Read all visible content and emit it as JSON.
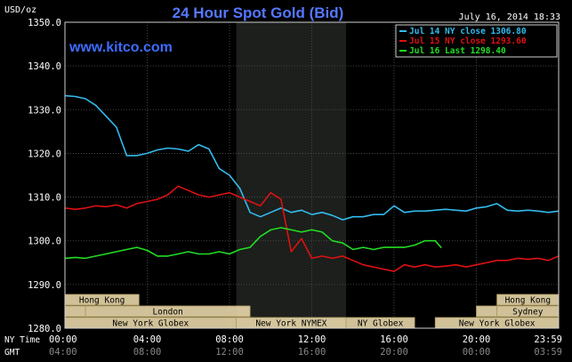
{
  "chart_data": {
    "type": "line",
    "title": "24 Hour Spot Gold (Bid)",
    "unit_label": "USD/oz",
    "date_label": "July 16, 2014 18:33",
    "watermark": "www.kitco.com",
    "ylim": [
      1280,
      1350
    ],
    "y_ticks": [
      "1350.0",
      "1340.0",
      "1330.0",
      "1320.0",
      "1310.0",
      "1300.0",
      "1290.0",
      "1280.0"
    ],
    "y_tick_values": [
      1350,
      1340,
      1330,
      1320,
      1310,
      1300,
      1290,
      1280
    ],
    "xlim_hours": [
      0,
      24
    ],
    "x_ticks": [
      {
        "h": 0,
        "ny": "00:00",
        "gmt": "04:00"
      },
      {
        "h": 4,
        "ny": "04:00",
        "gmt": "08:00"
      },
      {
        "h": 8,
        "ny": "08:00",
        "gmt": "12:00"
      },
      {
        "h": 12,
        "ny": "12:00",
        "gmt": "16:00"
      },
      {
        "h": 16,
        "ny": "16:00",
        "gmt": "20:00"
      },
      {
        "h": 20,
        "ny": "20:00",
        "gmt": "00:00"
      },
      {
        "h": 24,
        "ny": "23:59",
        "gmt": "03:59"
      }
    ],
    "x_axis_labels": {
      "ny": "NY Time",
      "gmt": "GMT"
    },
    "shaded_region_hours": [
      8.33,
      13.67
    ],
    "grid": true,
    "legend_position": "top-right",
    "series": [
      {
        "name": "Jul 14 NY close 1306.80",
        "color": "#33bbee",
        "x": [
          0,
          0.5,
          1,
          1.5,
          2,
          2.5,
          3,
          3.5,
          4,
          4.5,
          5,
          5.5,
          6,
          6.5,
          7,
          7.5,
          8,
          8.5,
          9,
          9.5,
          10,
          10.5,
          11,
          11.5,
          12,
          12.5,
          13,
          13.5,
          14,
          14.5,
          15,
          15.5,
          16,
          16.5,
          17,
          17.5,
          18,
          18.5,
          19,
          19.5,
          20,
          20.5,
          21,
          21.5,
          22,
          22.5,
          23,
          23.5,
          24
        ],
        "values": [
          1333.2,
          1333.0,
          1332.5,
          1331.0,
          1328.5,
          1326.0,
          1319.5,
          1319.5,
          1320.0,
          1320.8,
          1321.2,
          1321.0,
          1320.5,
          1322.0,
          1321.0,
          1316.5,
          1315.0,
          1312.0,
          1306.5,
          1305.5,
          1306.5,
          1307.5,
          1306.5,
          1307.0,
          1306.0,
          1306.5,
          1305.8,
          1304.8,
          1305.5,
          1305.5,
          1306.0,
          1306.0,
          1308.0,
          1306.5,
          1306.8,
          1306.8,
          1307.0,
          1307.2,
          1307.0,
          1306.8,
          1307.5,
          1307.8,
          1308.5,
          1307.0,
          1306.8,
          1307.0,
          1306.8,
          1306.5,
          1306.8
        ]
      },
      {
        "name": "Jul 15 NY close 1293.60",
        "color": "#dd1111",
        "x": [
          0,
          0.5,
          1,
          1.5,
          2,
          2.5,
          3,
          3.5,
          4,
          4.5,
          5,
          5.5,
          6,
          6.5,
          7,
          7.5,
          8,
          8.5,
          9,
          9.5,
          10,
          10.5,
          11,
          11.5,
          12,
          12.5,
          13,
          13.5,
          14,
          14.5,
          15,
          15.5,
          16,
          16.5,
          17,
          17.5,
          18,
          18.5,
          19,
          19.5,
          20,
          20.5,
          21,
          21.5,
          22,
          22.5,
          23,
          23.5,
          24
        ],
        "values": [
          1307.5,
          1307.2,
          1307.5,
          1308.0,
          1307.8,
          1308.2,
          1307.5,
          1308.5,
          1309.0,
          1309.5,
          1310.5,
          1312.5,
          1311.5,
          1310.5,
          1310.0,
          1310.5,
          1311.0,
          1310.0,
          1309.0,
          1308.0,
          1311.0,
          1309.5,
          1297.5,
          1300.5,
          1296.0,
          1296.5,
          1296.0,
          1296.5,
          1295.5,
          1294.5,
          1294.0,
          1293.5,
          1293.0,
          1294.5,
          1294.0,
          1294.5,
          1294.0,
          1294.2,
          1294.5,
          1294.0,
          1294.5,
          1295.0,
          1295.5,
          1295.5,
          1296.0,
          1295.8,
          1296.0,
          1295.5,
          1296.5
        ]
      },
      {
        "name": "Jul 16 Last 1298.40",
        "color": "#22dd22",
        "x": [
          0,
          0.5,
          1,
          1.5,
          2,
          2.5,
          3,
          3.5,
          4,
          4.5,
          5,
          5.5,
          6,
          6.5,
          7,
          7.5,
          8,
          8.5,
          9,
          9.5,
          10,
          10.5,
          11,
          11.5,
          12,
          12.5,
          13,
          13.5,
          14,
          14.5,
          15,
          15.5,
          16,
          16.5,
          17,
          17.5,
          18,
          18.3
        ],
        "values": [
          1296.0,
          1296.2,
          1296.0,
          1296.5,
          1297.0,
          1297.5,
          1298.0,
          1298.5,
          1297.8,
          1296.5,
          1296.5,
          1297.0,
          1297.5,
          1297.0,
          1297.0,
          1297.5,
          1297.0,
          1298.0,
          1298.5,
          1301.0,
          1302.5,
          1303.0,
          1302.5,
          1302.0,
          1302.5,
          1302.0,
          1300.0,
          1299.5,
          1298.0,
          1298.5,
          1298.0,
          1298.5,
          1298.5,
          1298.5,
          1299.0,
          1300.0,
          1300.0,
          1298.4
        ]
      }
    ],
    "market_sessions": [
      {
        "name": "Hong Kong",
        "start": 0,
        "end": 3.6,
        "row": 0
      },
      {
        "name": "",
        "start": 0,
        "end": 1.0,
        "row": 1
      },
      {
        "name": "London",
        "start": 1.0,
        "end": 9.0,
        "row": 1
      },
      {
        "name": "New York Globex",
        "start": 0,
        "end": 8.33,
        "row": 2
      },
      {
        "name": "New York NYMEX",
        "start": 8.33,
        "end": 13.67,
        "row": 2
      },
      {
        "name": "NY Globex",
        "start": 13.67,
        "end": 17.0,
        "row": 2
      },
      {
        "name": "Hong Kong",
        "start": 21.0,
        "end": 24,
        "row": 0
      },
      {
        "name": "",
        "start": 20.0,
        "end": 21.0,
        "row": 1
      },
      {
        "name": "Sydney",
        "start": 21.0,
        "end": 24,
        "row": 1
      },
      {
        "name": "New York Globex",
        "start": 18.0,
        "end": 24,
        "row": 2
      }
    ],
    "session_colors": {
      "fill": "#f5e3b3",
      "stroke": "#b09a60",
      "text": "#000000"
    }
  }
}
